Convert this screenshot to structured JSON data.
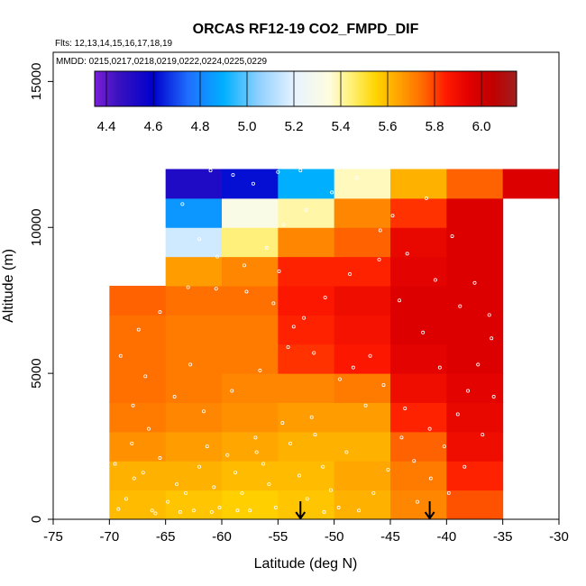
{
  "chart_data": {
    "type": "heatmap",
    "title": "ORCAS RF12-19 CO2_FMPD_DIF",
    "flights_note": "Flts: 12,13,14,15,16,17,18,19",
    "dates_note": "MMDD: 0215,0217,0218,0219,0222,0224,0225,0229",
    "xlabel": "Latitude (deg N)",
    "ylabel": "Altitude (m)",
    "xlim": [
      -75,
      -30
    ],
    "ylim": [
      0,
      16000
    ],
    "x_ticks": [
      -75,
      -70,
      -65,
      -60,
      -55,
      -50,
      -45,
      -40,
      -35,
      -30
    ],
    "y_ticks": [
      0,
      5000,
      10000,
      15000
    ],
    "colorbar": {
      "min": 4.35,
      "max": 6.15,
      "ticks": [
        4.4,
        4.6,
        4.8,
        5.0,
        5.2,
        5.4,
        5.6,
        5.8,
        6.0
      ],
      "tick_labels": [
        "4.4",
        "4.6",
        "4.8",
        "5.0",
        "5.2",
        "5.4",
        "5.6",
        "5.8",
        "6.0"
      ],
      "stops": [
        {
          "v": 4.35,
          "c": "#7a1fd6"
        },
        {
          "v": 4.45,
          "c": "#3a12c0"
        },
        {
          "v": 4.6,
          "c": "#0000cc"
        },
        {
          "v": 4.75,
          "c": "#1f6fff"
        },
        {
          "v": 4.9,
          "c": "#00b0ff"
        },
        {
          "v": 5.05,
          "c": "#8fd0ff"
        },
        {
          "v": 5.2,
          "c": "#e6f2ff"
        },
        {
          "v": 5.35,
          "c": "#fffde0"
        },
        {
          "v": 5.45,
          "c": "#ffef70"
        },
        {
          "v": 5.55,
          "c": "#ffd400"
        },
        {
          "v": 5.65,
          "c": "#ffa200"
        },
        {
          "v": 5.75,
          "c": "#ff6a00"
        },
        {
          "v": 5.85,
          "c": "#ff1a00"
        },
        {
          "v": 5.95,
          "c": "#e00000"
        },
        {
          "v": 6.05,
          "c": "#c00000"
        },
        {
          "v": 6.15,
          "c": "#a02020"
        }
      ]
    },
    "lat_edges": [
      -70,
      -65,
      -60,
      -55,
      -50,
      -45,
      -40,
      -35,
      -30
    ],
    "alt_edges": [
      0,
      1000,
      2000,
      3000,
      4000,
      5000,
      6000,
      7000,
      8000,
      9000,
      10000,
      11000,
      12000
    ],
    "cells": [
      [
        5.6,
        5.58,
        5.56,
        5.58,
        5.62,
        5.7,
        5.78,
        null
      ],
      [
        5.62,
        5.62,
        5.6,
        5.6,
        5.64,
        5.72,
        5.84,
        null
      ],
      [
        5.68,
        5.66,
        5.64,
        5.62,
        5.62,
        5.76,
        5.9,
        null
      ],
      [
        5.72,
        5.7,
        5.68,
        5.66,
        5.66,
        5.84,
        5.92,
        null
      ],
      [
        5.74,
        5.72,
        5.7,
        5.7,
        5.72,
        5.9,
        5.94,
        null
      ],
      [
        5.74,
        5.72,
        5.72,
        5.82,
        5.86,
        5.94,
        5.96,
        null
      ],
      [
        5.74,
        5.72,
        5.72,
        5.84,
        5.88,
        5.96,
        5.96,
        null
      ],
      [
        5.76,
        5.74,
        5.74,
        5.86,
        5.9,
        5.96,
        5.96,
        null
      ],
      [
        null,
        5.66,
        5.7,
        5.84,
        5.84,
        5.94,
        5.96,
        null
      ],
      [
        null,
        5.16,
        5.44,
        5.7,
        5.76,
        5.92,
        5.96,
        null
      ],
      [
        null,
        4.84,
        5.32,
        5.4,
        5.7,
        5.82,
        5.96,
        null
      ],
      [
        null,
        4.52,
        4.62,
        4.9,
        5.38,
        5.62,
        5.76,
        5.96
      ]
    ],
    "samples": [
      [
        -69.2,
        350
      ],
      [
        -68.5,
        700
      ],
      [
        -67.8,
        1400
      ],
      [
        -67.0,
        1600
      ],
      [
        -66.2,
        300
      ],
      [
        -65.5,
        2100
      ],
      [
        -68.0,
        2600
      ],
      [
        -66.5,
        3100
      ],
      [
        -64.8,
        600
      ],
      [
        -64.0,
        1200
      ],
      [
        -63.2,
        900
      ],
      [
        -62.5,
        300
      ],
      [
        -62.0,
        1800
      ],
      [
        -61.3,
        2500
      ],
      [
        -60.7,
        1100
      ],
      [
        -60.2,
        400
      ],
      [
        -59.5,
        2200
      ],
      [
        -58.8,
        1600
      ],
      [
        -58.2,
        900
      ],
      [
        -57.5,
        300
      ],
      [
        -57.0,
        2800
      ],
      [
        -56.3,
        1900
      ],
      [
        -55.8,
        1200
      ],
      [
        -55.2,
        400
      ],
      [
        -54.6,
        3300
      ],
      [
        -53.9,
        2600
      ],
      [
        -53.1,
        1500
      ],
      [
        -52.4,
        700
      ],
      [
        -51.7,
        2900
      ],
      [
        -51.0,
        1800
      ],
      [
        -50.3,
        1000
      ],
      [
        -49.6,
        400
      ],
      [
        -48.9,
        2300
      ],
      [
        -47.8,
        300
      ],
      [
        -46.5,
        900
      ],
      [
        -45.2,
        1700
      ],
      [
        -44.0,
        2800
      ],
      [
        -42.6,
        600
      ],
      [
        -41.4,
        1400
      ],
      [
        -40.2,
        2500
      ],
      [
        -39.0,
        3600
      ],
      [
        -38.1,
        4400
      ],
      [
        -37.2,
        5300
      ],
      [
        -36.0,
        6200
      ],
      [
        -38.8,
        7300
      ],
      [
        -41.0,
        8200
      ],
      [
        -43.5,
        9100
      ],
      [
        -45.9,
        9900
      ],
      [
        -47.2,
        3900
      ],
      [
        -49.5,
        4800
      ],
      [
        -51.8,
        5700
      ],
      [
        -53.6,
        6600
      ],
      [
        -55.4,
        7400
      ],
      [
        -57.8,
        7800
      ],
      [
        -60.5,
        7900
      ],
      [
        -63.0,
        7950
      ],
      [
        -65.5,
        7100
      ],
      [
        -67.4,
        6500
      ],
      [
        -69.0,
        5600
      ],
      [
        -66.8,
        4900
      ],
      [
        -64.2,
        4200
      ],
      [
        -61.6,
        3700
      ],
      [
        -59.1,
        4400
      ],
      [
        -56.6,
        5100
      ],
      [
        -54.1,
        5900
      ],
      [
        -52.7,
        6900
      ],
      [
        -50.8,
        7600
      ],
      [
        -48.6,
        8400
      ],
      [
        -46.0,
        8900
      ],
      [
        -44.2,
        7500
      ],
      [
        -42.1,
        6400
      ],
      [
        -40.6,
        5200
      ],
      [
        -58.0,
        8700
      ],
      [
        -56.0,
        9300
      ],
      [
        -54.5,
        10100
      ],
      [
        -52.5,
        10600
      ],
      [
        -50.2,
        11200
      ],
      [
        -48.0,
        11700
      ],
      [
        -61.0,
        11950
      ],
      [
        -59.0,
        11800
      ],
      [
        -57.2,
        11500
      ],
      [
        -55.0,
        11900
      ],
      [
        -53.0,
        11950
      ],
      [
        -63.5,
        10800
      ],
      [
        -62.0,
        9600
      ],
      [
        -60.4,
        9000
      ],
      [
        -44.8,
        10400
      ],
      [
        -41.8,
        11000
      ],
      [
        -39.5,
        9700
      ],
      [
        -37.5,
        8100
      ],
      [
        -36.2,
        7000
      ],
      [
        -35.8,
        4200
      ],
      [
        -36.8,
        2900
      ],
      [
        -38.4,
        1800
      ],
      [
        -39.8,
        900
      ],
      [
        -42.9,
        2000
      ],
      [
        -46.8,
        5600
      ],
      [
        -45.6,
        4600
      ],
      [
        -43.7,
        3800
      ],
      [
        -41.5,
        3100
      ],
      [
        -58.6,
        300
      ],
      [
        -60.9,
        250
      ],
      [
        -63.7,
        250
      ],
      [
        -65.9,
        200
      ],
      [
        -50.9,
        250
      ],
      [
        -48.3,
        5200
      ],
      [
        -52.0,
        3500
      ],
      [
        -56.9,
        2300
      ],
      [
        -62.8,
        5300
      ],
      [
        -67.9,
        3900
      ],
      [
        -69.5,
        1900
      ],
      [
        -54.9,
        8500
      ]
    ],
    "markers_lat": [
      -53.0,
      -41.5
    ]
  }
}
